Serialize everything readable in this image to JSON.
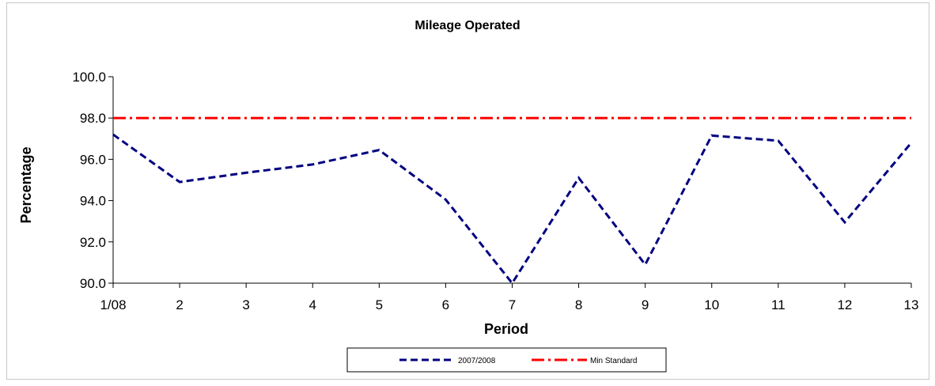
{
  "chart_data": {
    "type": "line",
    "title": "Mileage Operated",
    "xlabel": "Period",
    "ylabel": "Percentage",
    "categories": [
      "1/08",
      "2",
      "3",
      "4",
      "5",
      "6",
      "7",
      "8",
      "9",
      "10",
      "11",
      "12",
      "13"
    ],
    "ylim": [
      90.0,
      100.0
    ],
    "yticks": [
      "90.0",
      "92.0",
      "94.0",
      "96.0",
      "98.0",
      "100.0"
    ],
    "grid": false,
    "legend_position": "bottom",
    "series": [
      {
        "name": "2007/2008",
        "color": "#000080",
        "style": "dashed",
        "values": [
          97.2,
          94.9,
          95.35,
          95.75,
          96.45,
          94.05,
          90.0,
          95.1,
          90.9,
          97.15,
          96.9,
          92.95,
          96.8
        ]
      },
      {
        "name": "Min Standard",
        "color": "#ff0000",
        "style": "dash-dot",
        "values": [
          98.0,
          98.0,
          98.0,
          98.0,
          98.0,
          98.0,
          98.0,
          98.0,
          98.0,
          98.0,
          98.0,
          98.0,
          98.0
        ]
      }
    ]
  }
}
